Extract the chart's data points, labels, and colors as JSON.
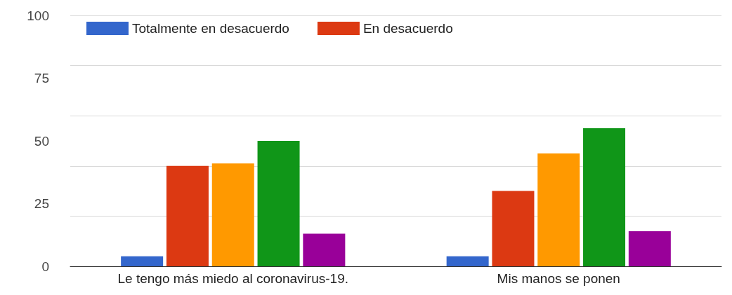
{
  "chart_data": {
    "type": "bar",
    "categories": [
      "Le tengo más miedo al coronavirus-19.",
      "Mis manos se ponen"
    ],
    "series": [
      {
        "name": "Totalmente en desacuerdo",
        "color": "#3366cc",
        "values": [
          4,
          4
        ]
      },
      {
        "name": "En desacuerdo",
        "color": "#dc3912",
        "values": [
          40,
          30
        ]
      },
      {
        "color": "#ff9900",
        "values": [
          41,
          45
        ]
      },
      {
        "color": "#109618",
        "values": [
          50,
          55
        ]
      },
      {
        "color": "#990099",
        "values": [
          13,
          14
        ]
      }
    ],
    "ylim": [
      0,
      100
    ],
    "yticks": [
      0,
      25,
      50,
      75,
      100
    ],
    "grid": "y",
    "legend": "top"
  }
}
